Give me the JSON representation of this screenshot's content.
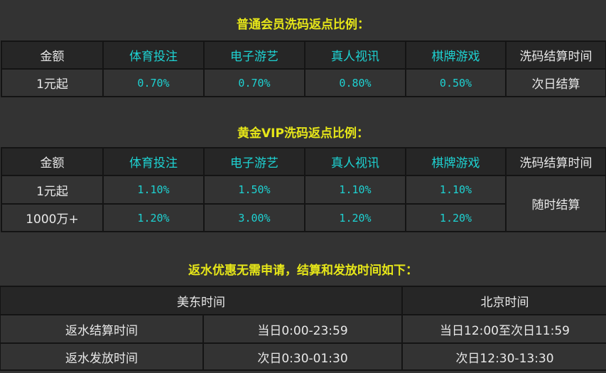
{
  "regular": {
    "title": "普通会员洗码返点比例：",
    "headers": [
      "金额",
      "体育投注",
      "电子游艺",
      "真人视讯",
      "棋牌游戏",
      "洗码结算时间"
    ],
    "rows": [
      [
        "1元起",
        "0.70%",
        "0.70%",
        "0.80%",
        "0.50%",
        "次日结算"
      ]
    ]
  },
  "gold": {
    "title": "黄金VIP洗码返点比例：",
    "headers": [
      "金额",
      "体育投注",
      "电子游艺",
      "真人视讯",
      "棋牌游戏",
      "洗码结算时间"
    ],
    "rows": [
      [
        "1元起",
        "1.10%",
        "1.50%",
        "1.10%",
        "1.10%"
      ],
      [
        "1000万+",
        "1.20%",
        "3.00%",
        "1.20%",
        "1.20%"
      ]
    ],
    "settle": "随时结算"
  },
  "rebate": {
    "title": "返水优惠无需申请，结算和发放时间如下：",
    "headers": [
      "美东时间",
      "北京时间"
    ],
    "rows": [
      [
        "返水结算时间",
        "当日0:00-23:59",
        "当日12:00至次日11:59"
      ],
      [
        "返水发放时间",
        "次日0:30-01:30",
        "次日12:30-13:30"
      ]
    ]
  },
  "colors": {
    "title": "#e6e619",
    "category": "#1ed2d2",
    "header_bg": "#262626",
    "bg": "#333333"
  }
}
